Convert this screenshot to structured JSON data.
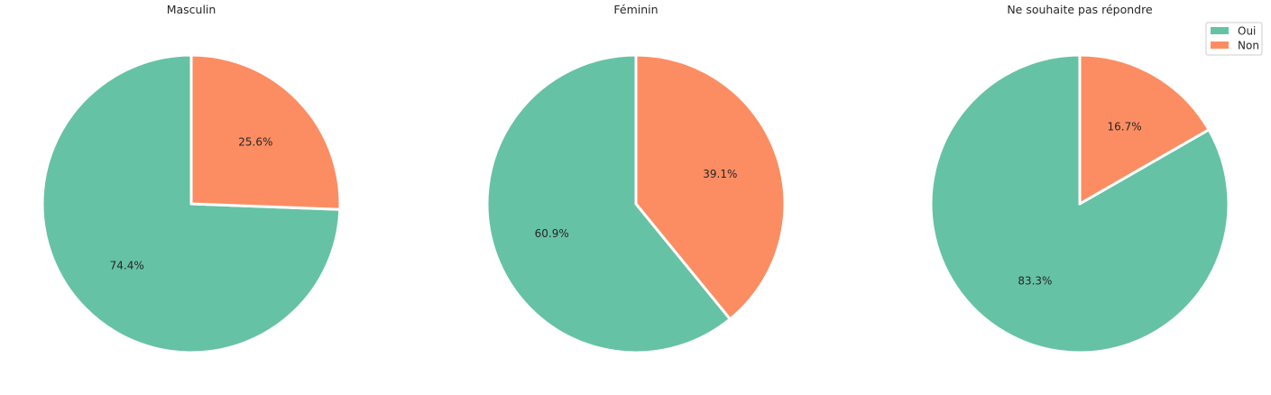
{
  "chart_data": [
    {
      "type": "pie",
      "title": "Masculin",
      "categories": [
        "Oui",
        "Non"
      ],
      "values": [
        74.4,
        25.6
      ],
      "labels": [
        "74.4%",
        "25.6%"
      ],
      "start_angle": 90,
      "direction": "counterclockwise"
    },
    {
      "type": "pie",
      "title": "Féminin",
      "categories": [
        "Oui",
        "Non"
      ],
      "values": [
        60.9,
        39.1
      ],
      "labels": [
        "60.9%",
        "39.1%"
      ],
      "start_angle": 90,
      "direction": "counterclockwise"
    },
    {
      "type": "pie",
      "title": "Ne souhaite pas répondre",
      "categories": [
        "Oui",
        "Non"
      ],
      "values": [
        83.3,
        16.7
      ],
      "labels": [
        "83.3%",
        "16.7%"
      ],
      "start_angle": 90,
      "direction": "counterclockwise",
      "legend": {
        "placement": "top-right",
        "entries": [
          "Oui",
          "Non"
        ]
      }
    }
  ],
  "colors": {
    "Oui": "#66c2a5",
    "Non": "#fc8d62"
  }
}
